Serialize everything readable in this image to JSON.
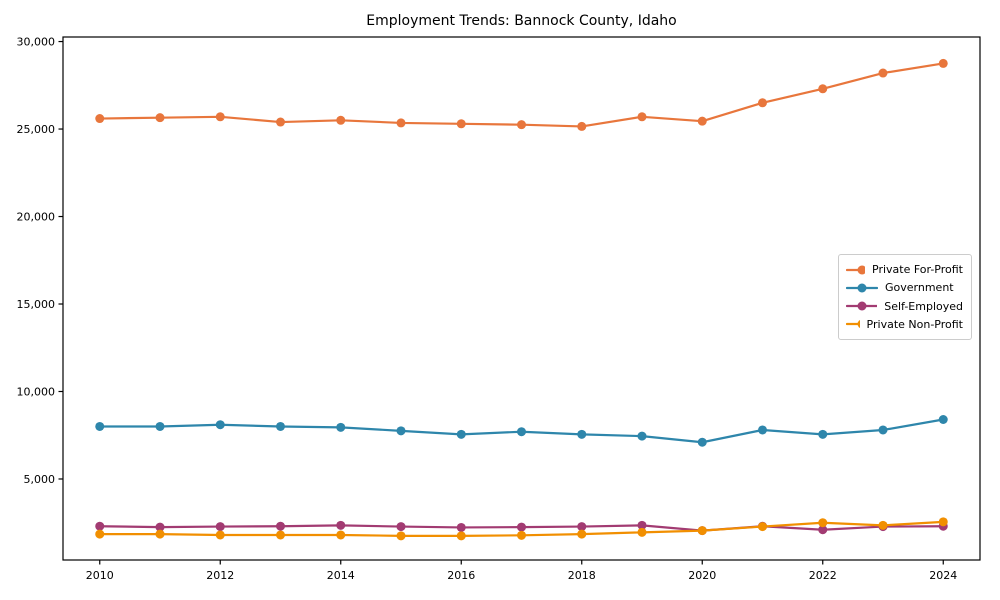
{
  "chart_data": {
    "type": "line",
    "title": "Employment Trends: Bannock County, Idaho",
    "xlabel": "",
    "ylabel": "",
    "x": [
      2010,
      2011,
      2012,
      2013,
      2014,
      2015,
      2016,
      2017,
      2018,
      2019,
      2020,
      2021,
      2022,
      2023,
      2024
    ],
    "series": [
      {
        "name": "Private For-Profit",
        "color": "#E8763C",
        "values": [
          25600,
          25650,
          25700,
          25400,
          25500,
          25350,
          25300,
          25250,
          25150,
          25700,
          25450,
          26500,
          27300,
          28200,
          28750
        ]
      },
      {
        "name": "Government",
        "color": "#2E86AB",
        "values": [
          8000,
          8000,
          8100,
          8000,
          7950,
          7750,
          7550,
          7700,
          7550,
          7450,
          7100,
          7800,
          7550,
          7800,
          8400
        ]
      },
      {
        "name": "Self-Employed",
        "color": "#A23B72",
        "values": [
          2300,
          2250,
          2280,
          2300,
          2350,
          2280,
          2230,
          2250,
          2280,
          2350,
          2050,
          2300,
          2100,
          2280,
          2300
        ]
      },
      {
        "name": "Private Non-Profit",
        "color": "#F18F01",
        "values": [
          1850,
          1850,
          1800,
          1800,
          1800,
          1750,
          1750,
          1780,
          1850,
          1950,
          2050,
          2280,
          2500,
          2350,
          2550
        ]
      }
    ],
    "xlim": [
      2009.39,
      2024.61
    ],
    "ylim": [
      370,
      30260
    ],
    "x_ticks": [
      2010,
      2012,
      2014,
      2016,
      2018,
      2020,
      2022,
      2024
    ],
    "x_tick_labels": [
      "2010",
      "2012",
      "2014",
      "2016",
      "2018",
      "2020",
      "2022",
      "2024"
    ],
    "y_ticks": [
      5000,
      10000,
      15000,
      20000,
      25000,
      30000
    ],
    "y_tick_labels": [
      "5,000",
      "10,000",
      "15,000",
      "20,000",
      "25,000",
      "30,000"
    ],
    "grid": false,
    "legend_position": "center right",
    "marker": "o"
  },
  "axes": {
    "spine_color": "#000000",
    "tick_color": "#000000"
  },
  "legend_style": {
    "border_color": "#cccccc",
    "background": "#ffffff"
  }
}
